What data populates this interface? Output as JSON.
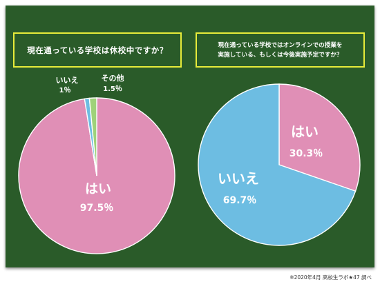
{
  "left_question": "現在通っている学校は休校中ですか？",
  "right_question_line1": "現在通っている学校ではオンラインでの授業を",
  "right_question_line2": "実施している、もしくは今後実施予定ですか？",
  "credit": "※2020年4月 高校生ラボ★47 調べ",
  "colors": {
    "board": "#2a5b29",
    "box_border": "#e8ec3a",
    "pink": "#e08fb6",
    "blue": "#6dbde2",
    "green": "#9fd27a"
  },
  "chart_data": [
    {
      "type": "pie",
      "title": "現在通っている学校は休校中ですか？",
      "slices": [
        {
          "label": "はい",
          "value_text": "97.5％",
          "value": 97.5,
          "color": "#e08fb6"
        },
        {
          "label": "いいえ",
          "value_text": "1％",
          "value": 1.0,
          "color": "#6dbde2"
        },
        {
          "label": "その他",
          "value_text": "1.5％",
          "value": 1.5,
          "color": "#9fd27a"
        }
      ]
    },
    {
      "type": "pie",
      "title": "現在通っている学校ではオンラインでの授業を実施している、もしくは今後実施予定ですか？",
      "slices": [
        {
          "label": "はい",
          "value_text": "30.3％",
          "value": 30.3,
          "color": "#e08fb6"
        },
        {
          "label": "いいえ",
          "value_text": "69.7％",
          "value": 69.7,
          "color": "#6dbde2"
        }
      ]
    }
  ]
}
